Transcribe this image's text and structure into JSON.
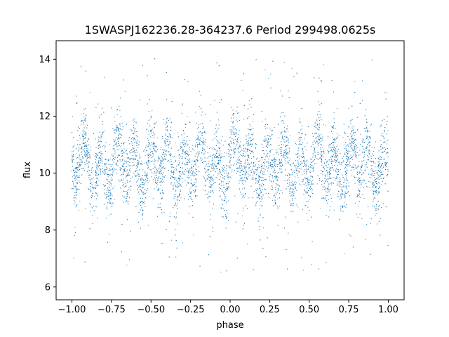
{
  "chart_data": {
    "type": "scatter",
    "title": "1SWASPJ162236.28-364237.6 Period 299498.0625s",
    "xlabel": "phase",
    "ylabel": "flux",
    "xlim": [
      -1.1,
      1.1
    ],
    "ylim": [
      5.55,
      14.65
    ],
    "xticks": [
      -1.0,
      -0.75,
      -0.5,
      -0.25,
      0.0,
      0.25,
      0.5,
      0.75,
      1.0
    ],
    "xtick_labels": [
      "−1.00",
      "−0.75",
      "−0.50",
      "−0.25",
      "0.00",
      "0.25",
      "0.50",
      "0.75",
      "1.00"
    ],
    "yticks": [
      6,
      8,
      10,
      12,
      14
    ],
    "ytick_labels": [
      "6",
      "8",
      "10",
      "12",
      "14"
    ],
    "grid": false,
    "marker_color": "#1f77b4",
    "series": [
      {
        "points_sample": [
          [
            -0.99,
            10.6
          ],
          [
            -0.97,
            9.4
          ],
          [
            -0.95,
            9.0
          ],
          [
            -0.92,
            10.1
          ],
          [
            -0.88,
            10.8
          ],
          [
            -0.85,
            11.2
          ],
          [
            -0.8,
            9.6
          ],
          [
            -0.76,
            11.0
          ],
          [
            -0.72,
            11.6
          ],
          [
            -0.68,
            9.2
          ],
          [
            -0.62,
            10.5
          ],
          [
            -0.58,
            11.0
          ],
          [
            -0.52,
            9.8
          ],
          [
            -0.47,
            10.9
          ],
          [
            -0.42,
            9.7
          ],
          [
            -0.38,
            8.6
          ],
          [
            -0.33,
            10.8
          ],
          [
            -0.28,
            11.0
          ],
          [
            -0.22,
            10.0
          ],
          [
            -0.17,
            9.4
          ],
          [
            -0.12,
            10.9
          ],
          [
            -0.07,
            9.6
          ],
          [
            -0.02,
            10.7
          ],
          [
            0.03,
            9.2
          ],
          [
            0.08,
            10.8
          ],
          [
            0.13,
            11.0
          ],
          [
            0.18,
            9.7
          ],
          [
            0.23,
            11.2
          ],
          [
            0.28,
            11.6
          ],
          [
            0.33,
            9.3
          ],
          [
            0.38,
            10.5
          ],
          [
            0.42,
            11.0
          ],
          [
            0.48,
            9.8
          ],
          [
            0.53,
            10.9
          ],
          [
            0.58,
            9.6
          ],
          [
            0.63,
            8.7
          ],
          [
            0.67,
            10.8
          ],
          [
            0.72,
            11.0
          ],
          [
            0.77,
            9.9
          ],
          [
            0.82,
            10.8
          ],
          [
            0.87,
            9.5
          ],
          [
            0.92,
            11.1
          ],
          [
            0.97,
            10.2
          ],
          [
            0.99,
            9.9
          ]
        ]
      }
    ]
  }
}
